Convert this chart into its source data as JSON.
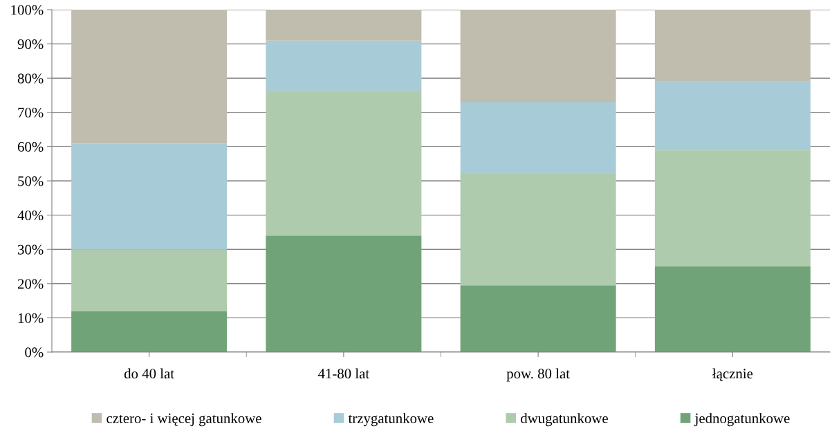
{
  "chart_data": {
    "type": "bar",
    "stacked": true,
    "categories": [
      "do 40 lat",
      "41-80 lat",
      "pow. 80 lat",
      "łącznie"
    ],
    "series": [
      {
        "name": "jednogatunkowe",
        "color": "#70a478",
        "values": [
          12,
          34,
          19.5,
          25
        ]
      },
      {
        "name": "dwugatunkowe",
        "color": "#afcbad",
        "values": [
          18,
          42,
          32.5,
          34
        ]
      },
      {
        "name": "trzygatunkowe",
        "color": "#a8ccd7",
        "values": [
          31,
          15,
          21,
          20
        ]
      },
      {
        "name": "cztero- i więcej gatunkowe",
        "color": "#c0bcae",
        "values": [
          39,
          9,
          27,
          21
        ]
      }
    ],
    "ylim": [
      0,
      100
    ],
    "yticks": [
      {
        "value": 0,
        "label": "0%"
      },
      {
        "value": 10,
        "label": "10%"
      },
      {
        "value": 20,
        "label": "20%"
      },
      {
        "value": 30,
        "label": "30%"
      },
      {
        "value": 40,
        "label": "40%"
      },
      {
        "value": 50,
        "label": "50%"
      },
      {
        "value": 60,
        "label": "60%"
      },
      {
        "value": 70,
        "label": "70%"
      },
      {
        "value": 80,
        "label": "80%"
      },
      {
        "value": 90,
        "label": "90%"
      },
      {
        "value": 100,
        "label": "100%"
      }
    ],
    "grid": "y",
    "legend": "bottom"
  }
}
